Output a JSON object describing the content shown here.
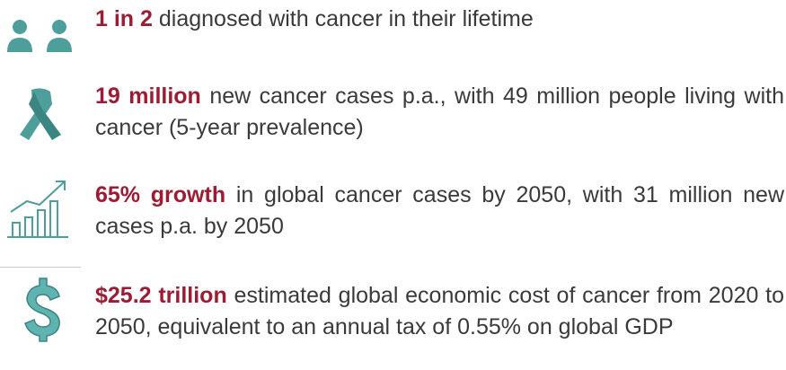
{
  "items": [
    {
      "highlight": "1 in 2",
      "text": "diagnosed with cancer in their lifetime"
    },
    {
      "highlight": "19 million",
      "text": "new cancer cases p.a., with 49 million people living with cancer (5-year prevalence)"
    },
    {
      "highlight": "65% growth",
      "text": "in global cancer cases by 2050, with 31 million new cases p.a. by 2050"
    },
    {
      "highlight": "$25.2 trillion",
      "text": "estimated global economic cost of cancer from 2020 to 2050, equivalent to an annual tax of 0.55% on global GDP"
    }
  ]
}
